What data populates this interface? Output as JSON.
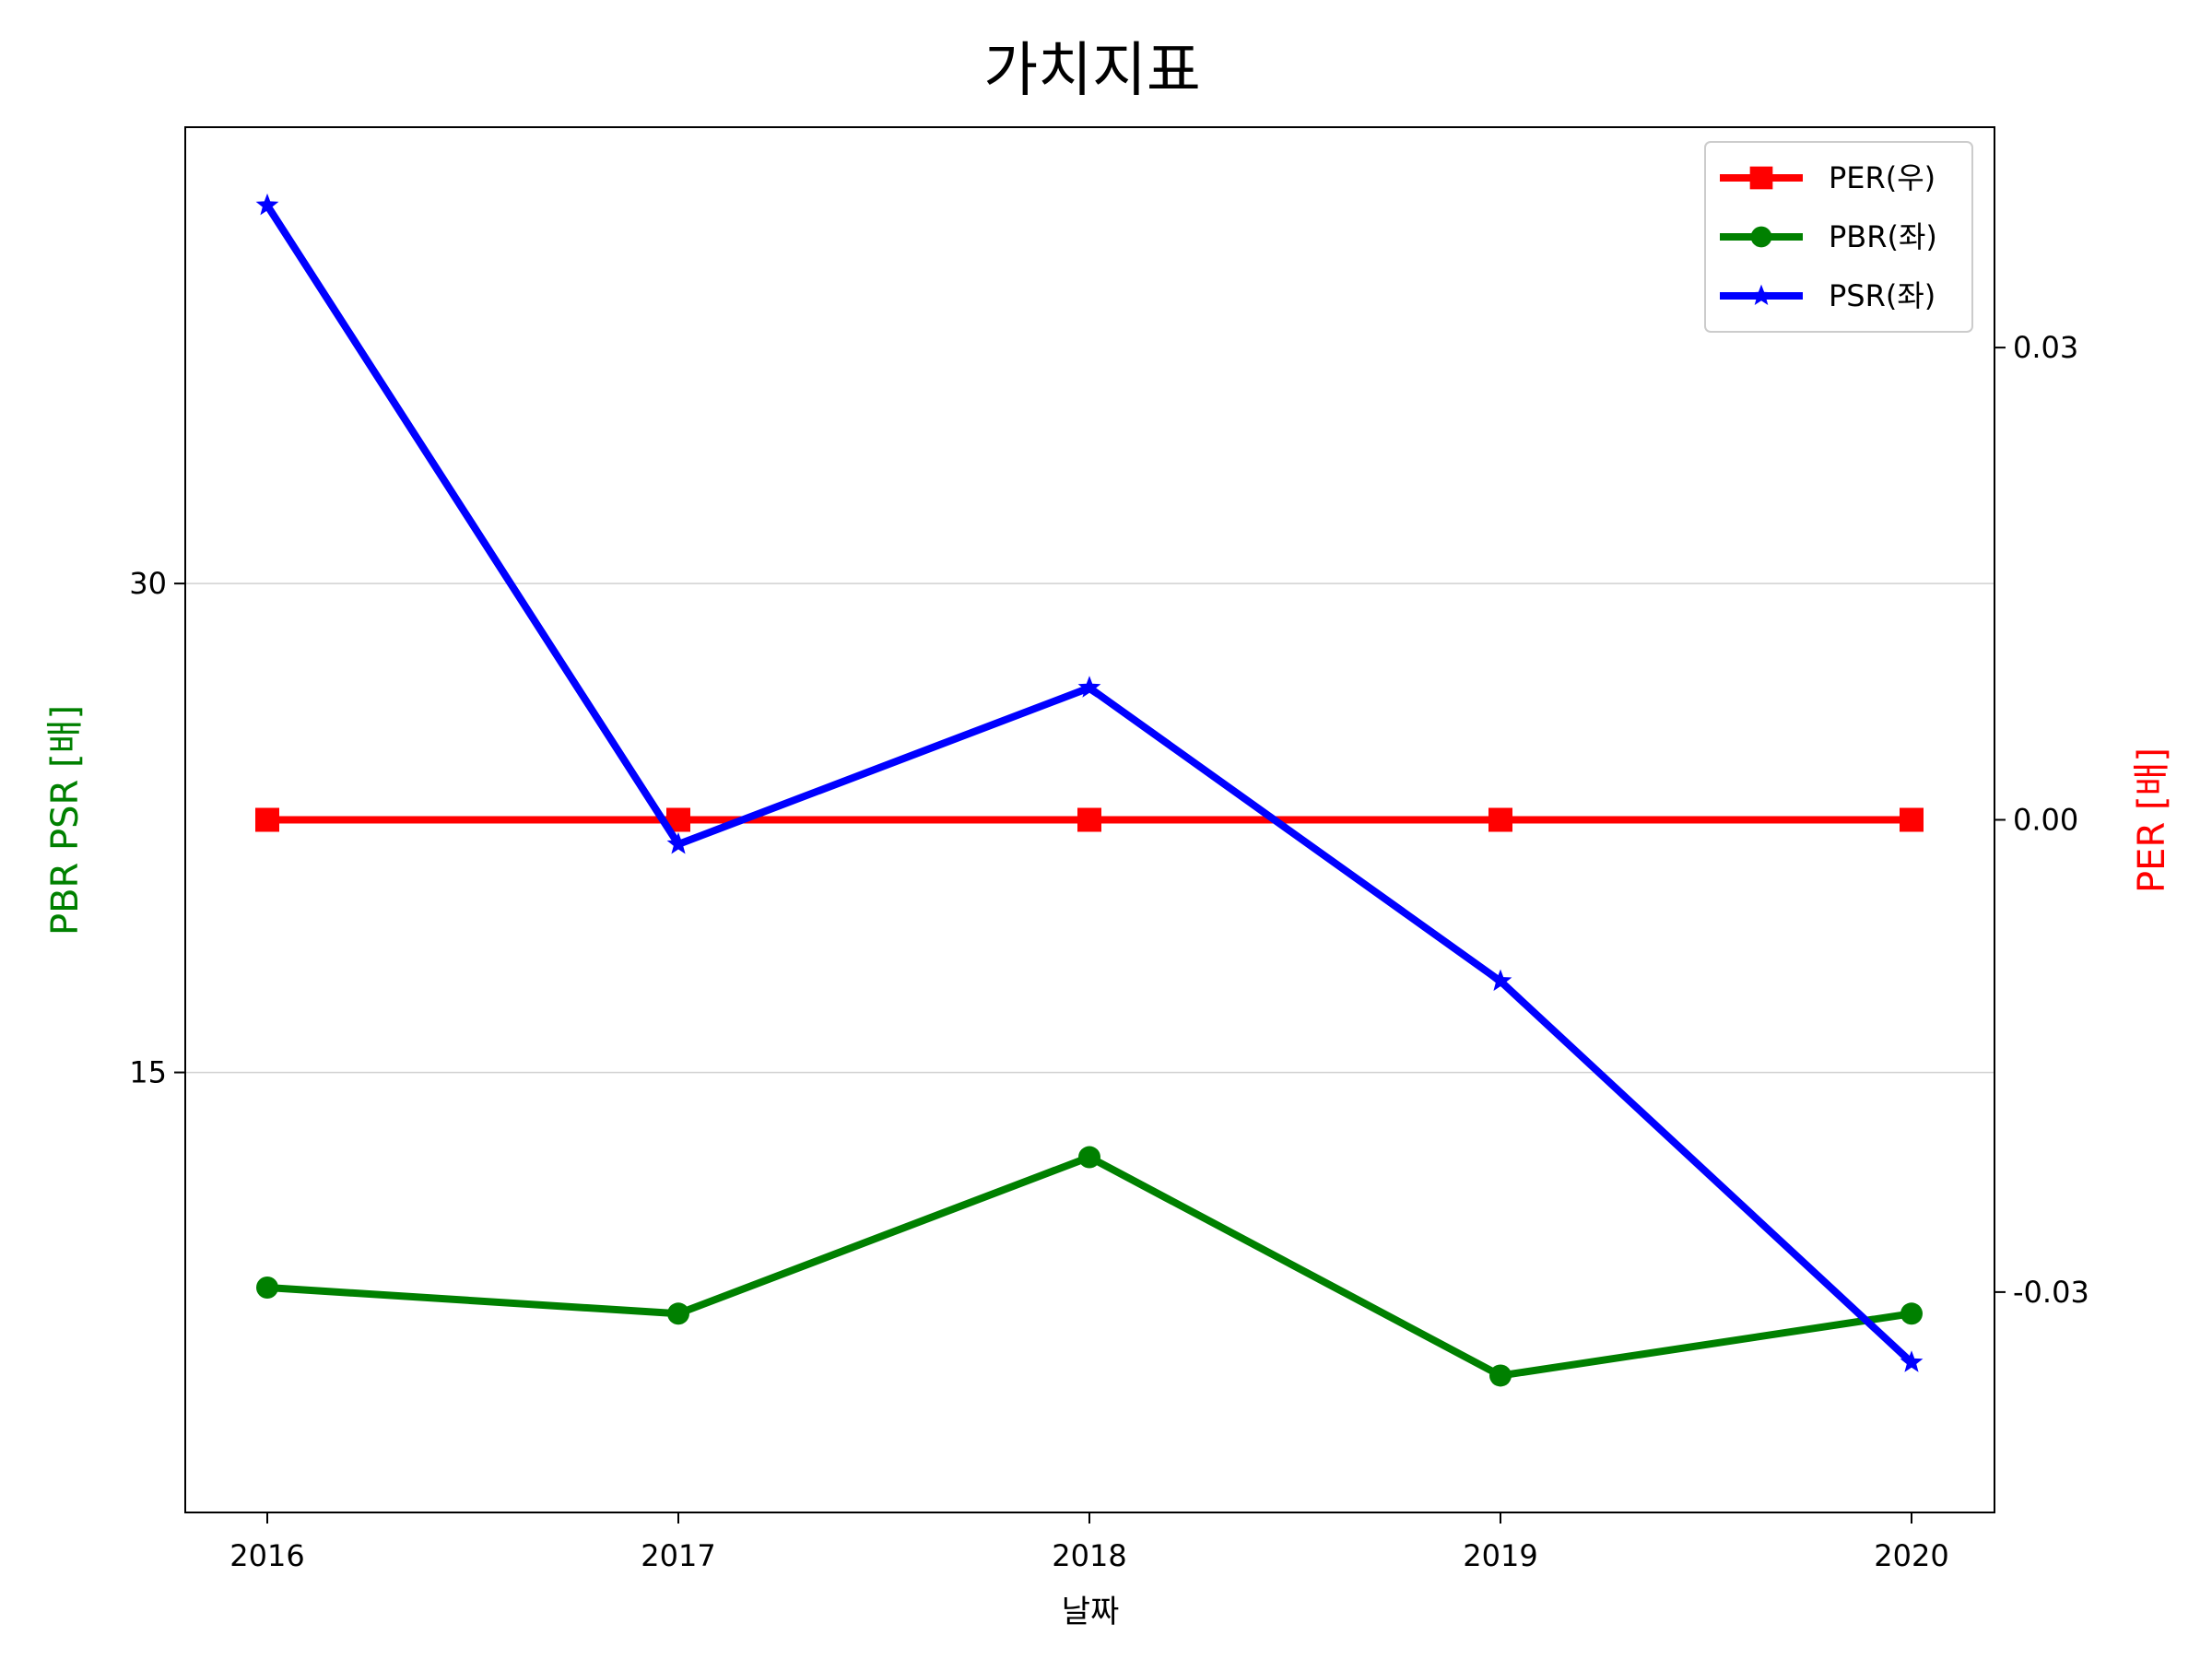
{
  "chart_data": {
    "type": "line",
    "title": "가치지표",
    "xlabel": "날짜",
    "ylabel_left": "PBR PSR [배]",
    "ylabel_right": "PER [배]",
    "x": [
      "2016",
      "2017",
      "2018",
      "2019",
      "2020"
    ],
    "ylim_left": [
      1.5,
      44
    ],
    "yticks_left": [
      "15",
      "30"
    ],
    "ylim_right": [
      -0.044,
      0.044
    ],
    "yticks_right": [
      "-0.03",
      "0.00",
      "0.03"
    ],
    "grid": "horizontal (left axis)",
    "legend_position": "top-right",
    "series": [
      {
        "name": "PER(우)",
        "axis": "right",
        "color": "#ff0000",
        "marker": "square",
        "values": [
          0,
          0,
          0,
          0,
          0
        ]
      },
      {
        "name": "PBR(좌)",
        "axis": "left",
        "color": "#008000",
        "marker": "circle",
        "values": [
          8.4,
          7.6,
          12.4,
          5.7,
          7.6
        ]
      },
      {
        "name": "PSR(좌)",
        "axis": "left",
        "color": "#0000ff",
        "marker": "star",
        "values": [
          41.6,
          22.0,
          26.8,
          17.8,
          6.1
        ]
      }
    ]
  }
}
